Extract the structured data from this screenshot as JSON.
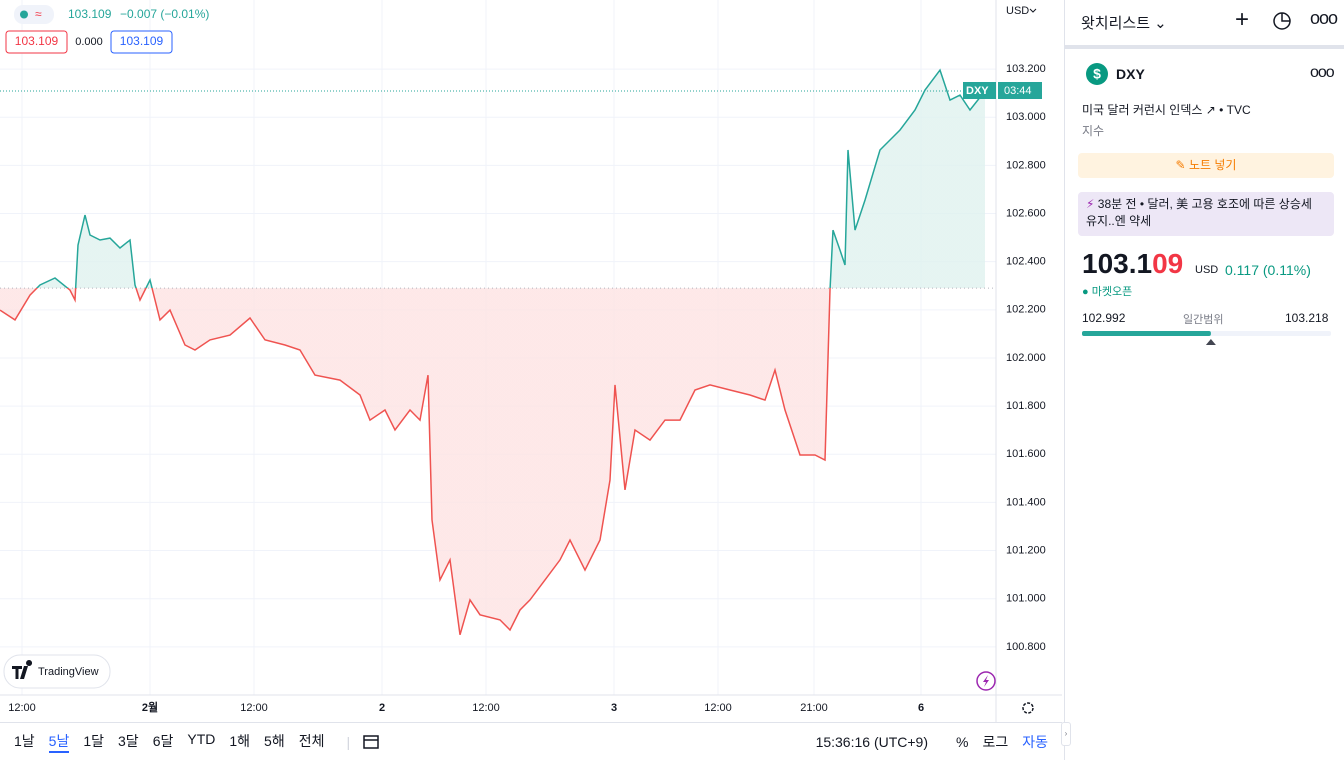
{
  "chart_data": {
    "type": "line",
    "x": [
      0,
      3,
      6,
      8,
      11,
      14,
      15,
      15.6,
      17,
      18,
      20,
      22,
      24,
      26,
      27,
      28,
      30,
      32,
      34,
      37,
      39,
      42,
      46,
      50,
      53,
      57,
      60,
      63,
      68,
      72,
      74,
      77,
      79,
      82,
      84,
      85.6,
      86.4,
      88,
      90,
      92,
      94,
      96,
      100,
      102,
      104,
      106,
      109,
      112,
      114,
      117,
      120,
      122,
      123,
      125,
      127,
      130,
      133,
      136,
      139,
      142,
      146,
      150,
      153,
      155,
      157,
      160,
      163,
      165,
      166,
      166.6,
      168,
      169,
      169.6,
      171,
      173,
      176,
      180,
      183,
      185,
      188,
      190,
      192,
      194,
      197
    ],
    "series": [
      {
        "name": "DXY",
        "color": "#26a69a",
        "color_below": "#ef5350",
        "values": [
          102.199,
          102.158,
          102.261,
          102.303,
          102.332,
          102.282,
          102.241,
          102.469,
          102.594,
          102.511,
          102.49,
          102.498,
          102.457,
          102.49,
          102.303,
          102.241,
          102.324,
          102.158,
          102.199,
          102.054,
          102.033,
          102.075,
          102.095,
          102.166,
          102.075,
          102.054,
          102.033,
          101.929,
          101.908,
          101.846,
          101.742,
          101.784,
          101.701,
          101.784,
          101.742,
          101.929,
          101.327,
          101.078,
          101.161,
          100.85,
          100.995,
          100.933,
          100.912,
          100.87,
          100.953,
          100.995,
          101.078,
          101.161,
          101.244,
          101.119,
          101.244,
          101.493,
          101.888,
          101.452,
          101.701,
          101.659,
          101.742,
          101.742,
          101.867,
          101.888,
          101.867,
          101.846,
          101.825,
          101.95,
          101.784,
          101.597,
          101.597,
          101.576,
          102.282,
          102.531,
          102.448,
          102.386,
          102.864,
          102.531,
          102.656,
          102.864,
          102.947,
          103.03,
          103.113,
          103.196,
          103.071,
          103.092,
          103.03,
          103.109
        ]
      }
    ],
    "baseline": 102.29,
    "area_colors": {
      "above": "#dff2ef",
      "below": "#fde3e3"
    },
    "xlim": [
      0,
      199
    ],
    "ylim": [
      100.6,
      103.487
    ],
    "yticks": [
      {
        "value": 100.8,
        "label": "100.800"
      },
      {
        "value": 101.0,
        "label": "101.000"
      },
      {
        "value": 101.2,
        "label": "101.200"
      },
      {
        "value": 101.4,
        "label": "101.400"
      },
      {
        "value": 101.6,
        "label": "101.600"
      },
      {
        "value": 101.8,
        "label": "101.800"
      },
      {
        "value": 102.0,
        "label": "102.000"
      },
      {
        "value": 102.2,
        "label": "102.200"
      },
      {
        "value": 102.4,
        "label": "102.400"
      },
      {
        "value": 102.6,
        "label": "102.600"
      },
      {
        "value": 102.8,
        "label": "102.800"
      },
      {
        "value": 103.0,
        "label": "103.000"
      },
      {
        "value": 103.2,
        "label": "103.200"
      }
    ],
    "xticks": [
      {
        "value": 4.4,
        "label": "12:00"
      },
      {
        "value": 30,
        "label": "2월"
      },
      {
        "value": 50.8,
        "label": "12:00"
      },
      {
        "value": 76.4,
        "label": "2"
      },
      {
        "value": 97.2,
        "label": "12:00"
      },
      {
        "value": 122.8,
        "label": "3"
      },
      {
        "value": 143.6,
        "label": "12:00"
      },
      {
        "value": 162.8,
        "label": "21:00"
      },
      {
        "value": 184.2,
        "label": "6"
      }
    ],
    "grid": true,
    "currency": "USD",
    "price_tag": "DXY",
    "countdown": "03:44"
  },
  "legend": {
    "last": "103.109",
    "change": "−0.007 (−0.01%)",
    "box_high": "103.109",
    "box_mid": "0.000",
    "box_low": "103.109"
  },
  "branding": "TradingView",
  "toolbar": {
    "ranges": [
      "1날",
      "5날",
      "1달",
      "3달",
      "6달",
      "YTD",
      "1해",
      "5해",
      "전체"
    ],
    "active": 1,
    "clock": "15:36:16 (UTC+9)",
    "percent": "%",
    "log": "로그",
    "auto": "자동"
  },
  "watchlist": {
    "title": "왓치리스트",
    "symbol": "DXY",
    "description": "미국 달러 커런시 인덱스",
    "source": "TVC",
    "kind": "지수",
    "note": "노트 넣기",
    "news": {
      "time": "38분 전",
      "headline": "달러, 美 고용 호조에 따른 상승세 유지..엔 약세"
    },
    "price_major": "103.1",
    "price_minor": "09",
    "currency": "USD",
    "change": "0.117 (0.11%)",
    "status": "마켓오픈",
    "range": {
      "low": 102.992,
      "label": "일간범위",
      "high": 103.218,
      "current": 103.109
    }
  }
}
